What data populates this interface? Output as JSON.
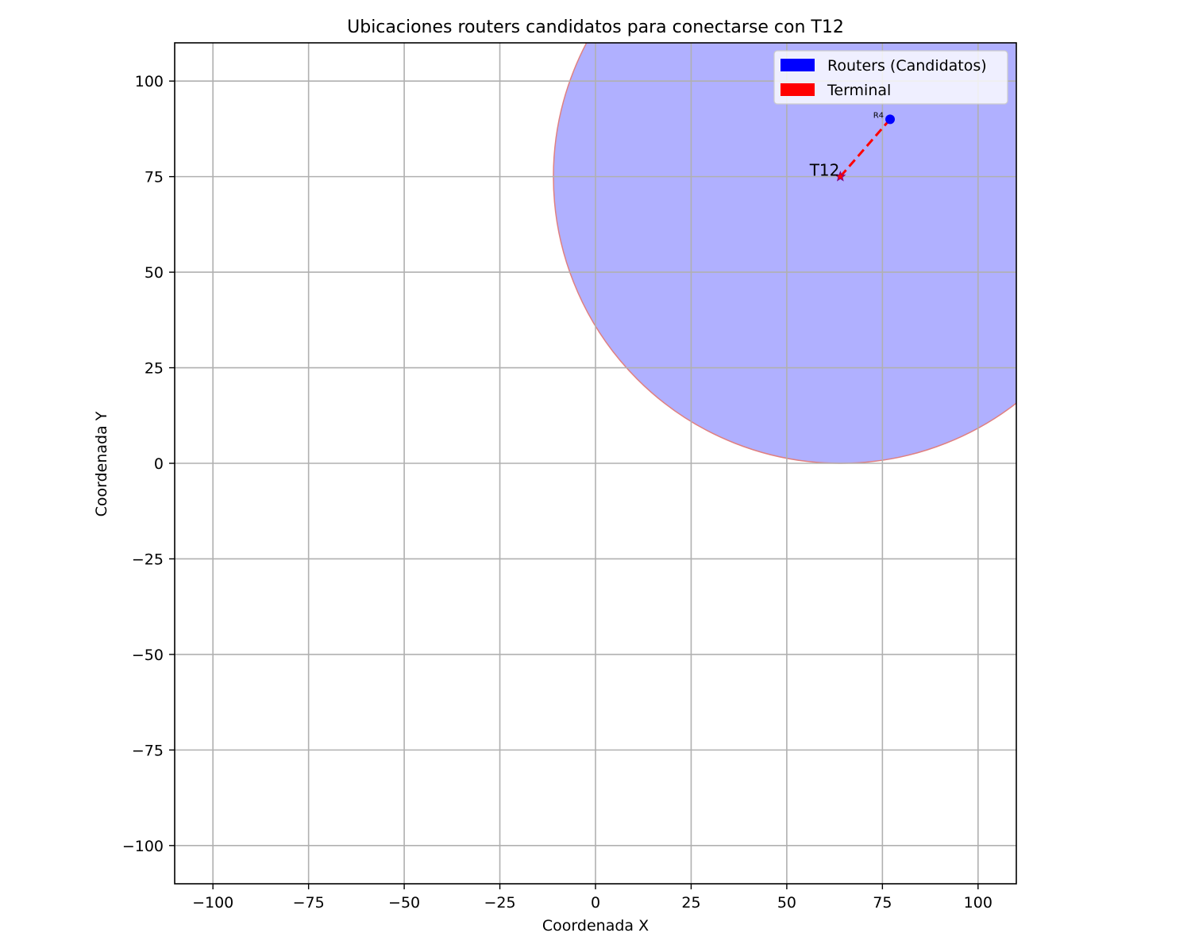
{
  "chart_data": {
    "type": "scatter",
    "title": "Ubicaciones routers candidatos para conectarse con T12",
    "xlabel": "Coordenada X",
    "ylabel": "Coordenada Y",
    "xlim": [
      -110,
      110
    ],
    "ylim": [
      -110,
      110
    ],
    "x_ticks": [
      -100,
      -75,
      -50,
      -25,
      0,
      25,
      50,
      75,
      100
    ],
    "y_ticks": [
      -100,
      -75,
      -50,
      -25,
      0,
      25,
      50,
      75,
      100
    ],
    "x_tick_labels": [
      "−100",
      "−75",
      "−50",
      "−25",
      "0",
      "25",
      "50",
      "75",
      "100"
    ],
    "y_tick_labels": [
      "−100",
      "−75",
      "−50",
      "−25",
      "0",
      "25",
      "50",
      "75",
      "100"
    ],
    "grid": true,
    "legend": {
      "placement": "top-right",
      "entries": [
        {
          "label": "Routers (Candidatos)",
          "color": "#0000ff"
        },
        {
          "label": "Terminal",
          "color": "#ff0000"
        }
      ]
    },
    "coverage_circle": {
      "center": [
        64,
        75
      ],
      "radius": 75,
      "fill": "#b0b0ff",
      "edge": "#e08080"
    },
    "routers": [
      {
        "label": "R4",
        "x": 77,
        "y": 90,
        "color": "#0000ff"
      }
    ],
    "terminal": {
      "label": "T12",
      "x": 64,
      "y": 75,
      "color": "#ff0000",
      "marker": "star"
    },
    "links": [
      {
        "from": "T12",
        "to": "R4",
        "color": "#ff0000",
        "style": "dashed"
      }
    ]
  }
}
